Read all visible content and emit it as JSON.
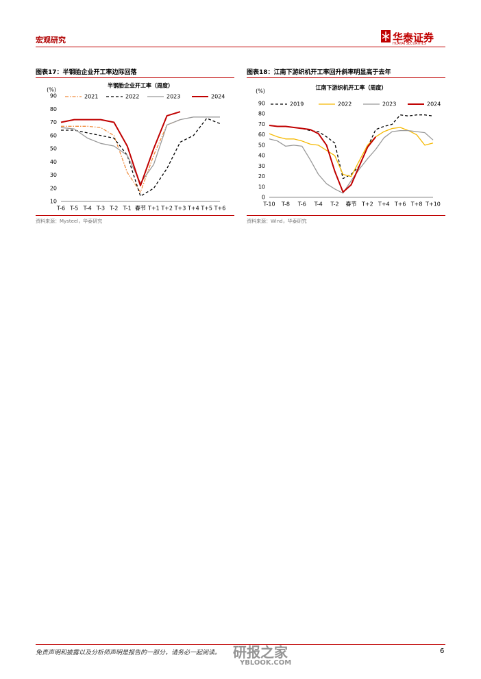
{
  "header": {
    "section": "宏观研究",
    "brand": "华泰证券",
    "brand_en": "HUATAI SECURITIES"
  },
  "chart_data": [
    {
      "type": "line",
      "caption": "图表17：半钢胎企业开工率边际回落",
      "title": "半钢胎企业开工率（周度）",
      "y_unit": "(%)",
      "source": "资料来源：Mysteel，华泰研究",
      "categories": [
        "T-6",
        "T-5",
        "T-4",
        "T-3",
        "T-2",
        "T-1",
        "春节",
        "T+1",
        "T+2",
        "T+3",
        "T+4",
        "T+5",
        "T+6"
      ],
      "series": [
        {
          "name": "2021",
          "color": "#f08a3a",
          "dash": "dashdot",
          "values": [
            67,
            67,
            67,
            66,
            60,
            32,
            17,
            45,
            68,
            72,
            null,
            null,
            null
          ]
        },
        {
          "name": "2022",
          "color": "#000000",
          "dash": "dashed",
          "values": [
            64,
            64,
            62,
            60,
            58,
            45,
            14,
            20,
            35,
            55,
            60,
            73,
            69
          ]
        },
        {
          "name": "2023",
          "color": "#999999",
          "dash": "solid",
          "values": [
            66,
            65,
            58,
            54,
            52,
            45,
            24,
            38,
            68,
            72,
            74,
            74,
            74
          ]
        },
        {
          "name": "2024",
          "color": "#c00000",
          "dash": "solid",
          "values": [
            70,
            72,
            72,
            72,
            70,
            52,
            22,
            50,
            75,
            78,
            null,
            null,
            null
          ]
        }
      ],
      "ylim": [
        10,
        90
      ],
      "yticks": [
        10,
        20,
        30,
        40,
        50,
        60,
        70,
        80,
        90
      ],
      "grid": false,
      "legend": "top"
    },
    {
      "type": "line",
      "caption": "图表18：江南下游织机开工率回升斜率明显高于去年",
      "title": "江南下游织机开工率（周度）",
      "y_unit": "(%)",
      "source": "资料来源：Wind，华泰研究",
      "categories": [
        "T-10",
        null,
        "T-8",
        null,
        "T-6",
        null,
        "T-4",
        null,
        "T-2",
        null,
        "春节",
        null,
        "T+2",
        null,
        "T+4",
        null,
        "T+6",
        null,
        "T+8",
        null,
        "T+10"
      ],
      "series": [
        {
          "name": "2019",
          "color": "#000000",
          "dash": "dashed",
          "values": [
            69,
            68,
            68,
            67,
            66,
            64,
            63,
            58,
            52,
            18,
            22,
            30,
            48,
            65,
            68,
            70,
            79,
            78,
            79,
            79,
            78
          ]
        },
        {
          "name": "2022",
          "color": "#f5b800",
          "dash": "solid",
          "values": [
            61,
            58,
            56,
            56,
            54,
            51,
            50,
            45,
            40,
            22,
            20,
            35,
            50,
            58,
            63,
            66,
            67,
            64,
            60,
            50,
            52
          ]
        },
        {
          "name": "2023",
          "color": "#999999",
          "dash": "solid",
          "values": [
            56,
            54,
            49,
            50,
            49,
            36,
            22,
            13,
            8,
            4,
            16,
            27,
            37,
            46,
            57,
            63,
            64,
            64,
            63,
            62,
            55
          ]
        },
        {
          "name": "2024",
          "color": "#c00000",
          "dash": "solid",
          "values": [
            69,
            68,
            68,
            67,
            66,
            65,
            61,
            50,
            25,
            5,
            12,
            30,
            48,
            58,
            null,
            null,
            null,
            null,
            null,
            null,
            null
          ]
        }
      ],
      "ylim": [
        0,
        90
      ],
      "yticks": [
        0,
        10,
        20,
        30,
        40,
        50,
        60,
        70,
        80,
        90
      ],
      "grid": false,
      "legend": "top"
    }
  ],
  "watermark": {
    "text": "研报之家",
    "url": "YBLOOK.COM"
  },
  "footer": {
    "disclaimer": "免责声明和披露以及分析师声明是报告的一部分，请务必一起阅读。",
    "page": 6
  }
}
